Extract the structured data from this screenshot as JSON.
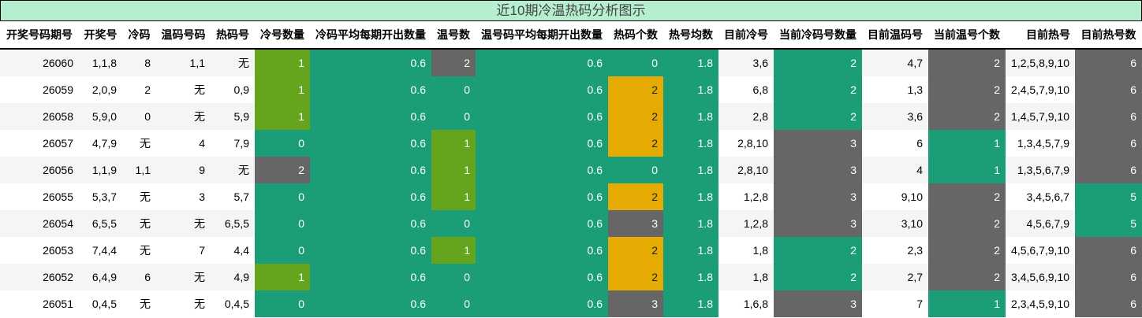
{
  "title": "近10期冷温热码分析图示",
  "colors": {
    "olive": "#65a41d",
    "teal": "#1b9e77",
    "grey": "#666666",
    "orange": "#e6ab02",
    "title_bg": "#b5efcf"
  },
  "headers": [
    "开奖号码期号",
    "开奖号",
    "冷码",
    "温码号码",
    "热码号",
    "冷号数量",
    "冷码平均每期开出数量",
    "温号数",
    "温号码平均每期开出数量",
    "热码个数",
    "热号均数",
    "目前冷号",
    "当前冷码号数量",
    "目前温码号",
    "当前温号个数",
    "目前热号",
    "目前热号数"
  ],
  "rows": [
    [
      [
        "26060"
      ],
      [
        "1,1,8"
      ],
      [
        "8"
      ],
      [
        "1,1"
      ],
      [
        "无"
      ],
      [
        "1",
        "olive"
      ],
      [
        "0.6",
        "teal"
      ],
      [
        "2",
        "grey"
      ],
      [
        "0.6",
        "teal"
      ],
      [
        "0",
        "teal"
      ],
      [
        "1.8",
        "teal"
      ],
      [
        "3,6"
      ],
      [
        "2",
        "teal"
      ],
      [
        "4,7"
      ],
      [
        "2",
        "grey"
      ],
      [
        "1,2,5,8,9,10"
      ],
      [
        "6",
        "grey"
      ]
    ],
    [
      [
        "26059"
      ],
      [
        "2,0,9"
      ],
      [
        "2"
      ],
      [
        "无"
      ],
      [
        "0,9"
      ],
      [
        "1",
        "olive"
      ],
      [
        "0.6",
        "teal"
      ],
      [
        "0",
        "teal"
      ],
      [
        "0.6",
        "teal"
      ],
      [
        "2",
        "orange"
      ],
      [
        "1.8",
        "teal"
      ],
      [
        "6,8"
      ],
      [
        "2",
        "teal"
      ],
      [
        "1,3"
      ],
      [
        "2",
        "grey"
      ],
      [
        "2,4,5,7,9,10"
      ],
      [
        "6",
        "grey"
      ]
    ],
    [
      [
        "26058"
      ],
      [
        "5,9,0"
      ],
      [
        "0"
      ],
      [
        "无"
      ],
      [
        "5,9"
      ],
      [
        "1",
        "olive"
      ],
      [
        "0.6",
        "teal"
      ],
      [
        "0",
        "teal"
      ],
      [
        "0.6",
        "teal"
      ],
      [
        "2",
        "orange"
      ],
      [
        "1.8",
        "teal"
      ],
      [
        "2,8"
      ],
      [
        "2",
        "teal"
      ],
      [
        "3,6"
      ],
      [
        "2",
        "grey"
      ],
      [
        "1,4,5,7,9,10"
      ],
      [
        "6",
        "grey"
      ]
    ],
    [
      [
        "26057"
      ],
      [
        "4,7,9"
      ],
      [
        "无"
      ],
      [
        "4"
      ],
      [
        "7,9"
      ],
      [
        "0",
        "teal"
      ],
      [
        "0.6",
        "teal"
      ],
      [
        "1",
        "olive"
      ],
      [
        "0.6",
        "teal"
      ],
      [
        "2",
        "orange"
      ],
      [
        "1.8",
        "teal"
      ],
      [
        "2,8,10"
      ],
      [
        "3",
        "grey"
      ],
      [
        "6"
      ],
      [
        "1",
        "teal"
      ],
      [
        "1,3,4,5,7,9"
      ],
      [
        "6",
        "grey"
      ]
    ],
    [
      [
        "26056"
      ],
      [
        "1,1,9"
      ],
      [
        "1,1"
      ],
      [
        "9"
      ],
      [
        "无"
      ],
      [
        "2",
        "grey"
      ],
      [
        "0.6",
        "teal"
      ],
      [
        "1",
        "olive"
      ],
      [
        "0.6",
        "teal"
      ],
      [
        "0",
        "teal"
      ],
      [
        "1.8",
        "teal"
      ],
      [
        "2,8,10"
      ],
      [
        "3",
        "grey"
      ],
      [
        "4"
      ],
      [
        "1",
        "teal"
      ],
      [
        "1,3,5,6,7,9"
      ],
      [
        "6",
        "grey"
      ]
    ],
    [
      [
        "26055"
      ],
      [
        "5,3,7"
      ],
      [
        "无"
      ],
      [
        "3"
      ],
      [
        "5,7"
      ],
      [
        "0",
        "teal"
      ],
      [
        "0.6",
        "teal"
      ],
      [
        "1",
        "olive"
      ],
      [
        "0.6",
        "teal"
      ],
      [
        "2",
        "orange"
      ],
      [
        "1.8",
        "teal"
      ],
      [
        "1,2,8"
      ],
      [
        "3",
        "grey"
      ],
      [
        "9,10"
      ],
      [
        "2",
        "grey"
      ],
      [
        "3,4,5,6,7"
      ],
      [
        "5",
        "teal"
      ]
    ],
    [
      [
        "26054"
      ],
      [
        "6,5,5"
      ],
      [
        "无"
      ],
      [
        "无"
      ],
      [
        "6,5,5"
      ],
      [
        "0",
        "teal"
      ],
      [
        "0.6",
        "teal"
      ],
      [
        "0",
        "teal"
      ],
      [
        "0.6",
        "teal"
      ],
      [
        "3",
        "grey"
      ],
      [
        "1.8",
        "teal"
      ],
      [
        "1,2,8"
      ],
      [
        "3",
        "grey"
      ],
      [
        "3,10"
      ],
      [
        "2",
        "grey"
      ],
      [
        "4,5,6,7,9"
      ],
      [
        "5",
        "teal"
      ]
    ],
    [
      [
        "26053"
      ],
      [
        "7,4,4"
      ],
      [
        "无"
      ],
      [
        "7"
      ],
      [
        "4,4"
      ],
      [
        "0",
        "teal"
      ],
      [
        "0.6",
        "teal"
      ],
      [
        "1",
        "olive"
      ],
      [
        "0.6",
        "teal"
      ],
      [
        "2",
        "orange"
      ],
      [
        "1.8",
        "teal"
      ],
      [
        "1,8"
      ],
      [
        "2",
        "teal"
      ],
      [
        "2,3"
      ],
      [
        "2",
        "grey"
      ],
      [
        "4,5,6,7,9,10"
      ],
      [
        "6",
        "grey"
      ]
    ],
    [
      [
        "26052"
      ],
      [
        "6,4,9"
      ],
      [
        "6"
      ],
      [
        "无"
      ],
      [
        "4,9"
      ],
      [
        "1",
        "olive"
      ],
      [
        "0.6",
        "teal"
      ],
      [
        "0",
        "teal"
      ],
      [
        "0.6",
        "teal"
      ],
      [
        "2",
        "orange"
      ],
      [
        "1.8",
        "teal"
      ],
      [
        "1,8"
      ],
      [
        "2",
        "teal"
      ],
      [
        "2,7"
      ],
      [
        "2",
        "grey"
      ],
      [
        "3,4,5,6,9,10"
      ],
      [
        "6",
        "grey"
      ]
    ],
    [
      [
        "26051"
      ],
      [
        "0,4,5"
      ],
      [
        "无"
      ],
      [
        "无"
      ],
      [
        "0,4,5"
      ],
      [
        "0",
        "teal"
      ],
      [
        "0.6",
        "teal"
      ],
      [
        "0",
        "teal"
      ],
      [
        "0.6",
        "teal"
      ],
      [
        "3",
        "grey"
      ],
      [
        "1.8",
        "teal"
      ],
      [
        "1,6,8"
      ],
      [
        "3",
        "grey"
      ],
      [
        "7"
      ],
      [
        "1",
        "teal"
      ],
      [
        "2,3,4,5,9,10"
      ],
      [
        "6",
        "grey"
      ]
    ]
  ]
}
